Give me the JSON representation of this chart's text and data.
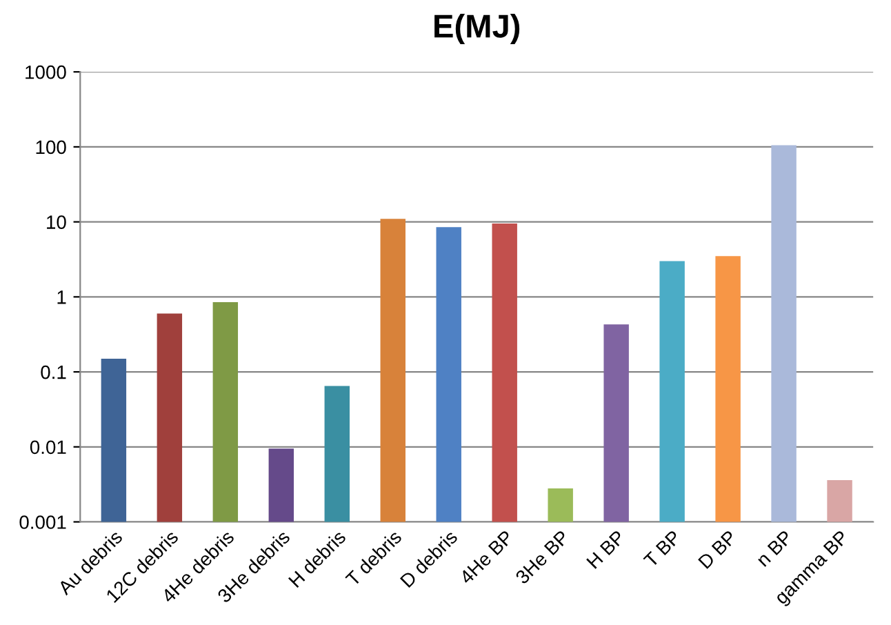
{
  "chart_data": {
    "type": "bar",
    "title": "E(MJ)",
    "categories": [
      "Au debris",
      "12C debris",
      "4He debris",
      "3He debris",
      "H debris",
      "T debris",
      "D debris",
      "4He BP",
      "3He BP",
      "H BP",
      "T BP",
      "D BP",
      "n BP",
      "gamma BP"
    ],
    "values": [
      0.15,
      0.6,
      0.85,
      0.0095,
      0.065,
      11,
      8.5,
      9.5,
      0.0028,
      0.43,
      3,
      3.5,
      105,
      0.0036
    ],
    "colors": [
      "#3f6496",
      "#a0403c",
      "#7f9a45",
      "#654a8a",
      "#3a8fa2",
      "#d8823a",
      "#4f81c4",
      "#c2504d",
      "#9bbb59",
      "#8064a2",
      "#4bacc6",
      "#f79646",
      "#aab9da",
      "#d9a6a5"
    ],
    "log": "y",
    "ylim": [
      0.001,
      1000
    ],
    "yticks": [
      0.001,
      0.01,
      0.1,
      1,
      10,
      100,
      1000
    ],
    "grid": "y"
  }
}
